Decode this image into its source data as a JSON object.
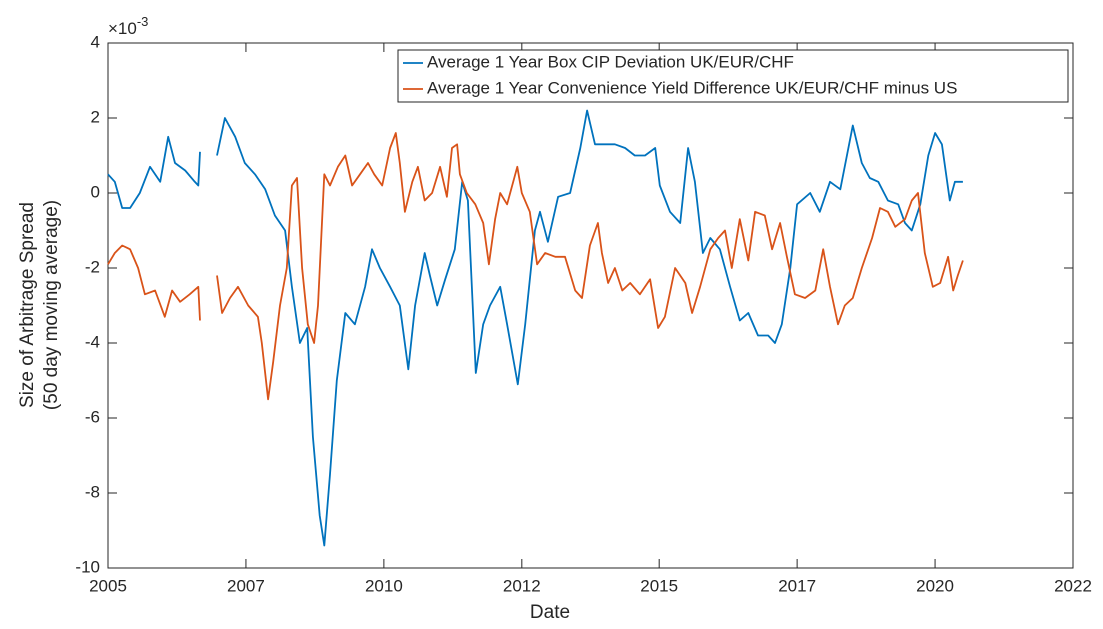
{
  "chart_data": {
    "type": "line",
    "xlabel": "Date",
    "ylabel": [
      "Size of Arbitrage Spread",
      "(50 day moving average)"
    ],
    "y_exponent": {
      "base": "×10",
      "power": "-3"
    },
    "xlim": [
      2005,
      2022
    ],
    "xticks": [
      2005,
      {
        "value": 2007.43,
        "label": "2007"
      },
      {
        "value": 2009.86,
        "label": "2010"
      },
      {
        "value": 2012.29,
        "label": "2012"
      },
      {
        "value": 2014.71,
        "label": "2015"
      },
      {
        "value": 2017.14,
        "label": "2017"
      },
      {
        "value": 2019.57,
        "label": "2020"
      },
      2022
    ],
    "ylim": [
      -10,
      4
    ],
    "yticks": [
      -10,
      -8,
      -6,
      -4,
      -2,
      0,
      2,
      4
    ],
    "grid": false,
    "legend": "top-right",
    "series": [
      {
        "name": "Average 1 Year Box CIP Deviation UK/EUR/CHF",
        "color": "#0072bd",
        "x": [
          2005.0,
          2005.12,
          2005.25,
          2005.39,
          2005.56,
          2005.74,
          2005.92,
          2006.06,
          2006.18,
          2006.36,
          2006.53,
          2006.59,
          2006.62,
          2006.77,
          2006.92,
          2007.06,
          2007.24,
          2007.41,
          2007.59,
          2007.77,
          2007.94,
          2008.12,
          2008.24,
          2008.38,
          2008.51,
          2008.61,
          2008.73,
          2008.81,
          2008.91,
          2009.03,
          2009.18,
          2009.35,
          2009.53,
          2009.65,
          2009.79,
          2009.97,
          2010.14,
          2010.29,
          2010.41,
          2010.58,
          2010.67,
          2010.8,
          2010.94,
          2011.11,
          2011.24,
          2011.34,
          2011.48,
          2011.61,
          2011.73,
          2011.91,
          2012.03,
          2012.22,
          2012.35,
          2012.52,
          2012.61,
          2012.75,
          2012.93,
          2013.14,
          2013.32,
          2013.44,
          2013.58,
          2013.76,
          2013.93,
          2014.11,
          2014.28,
          2014.46,
          2014.64,
          2014.72,
          2014.9,
          2015.08,
          2015.22,
          2015.34,
          2015.48,
          2015.61,
          2015.78,
          2015.96,
          2016.13,
          2016.28,
          2016.45,
          2016.63,
          2016.75,
          2016.87,
          2017.02,
          2017.14,
          2017.37,
          2017.54,
          2017.72,
          2017.9,
          2018.12,
          2018.28,
          2018.42,
          2018.57,
          2018.74,
          2018.92,
          2019.04,
          2019.16,
          2019.31,
          2019.45,
          2019.57,
          2019.69,
          2019.83,
          2019.92,
          2020.06
        ],
        "values": [
          0.5,
          0.3,
          -0.4,
          -0.4,
          0,
          0.7,
          0.3,
          1.5,
          0.8,
          0.6,
          0.3,
          0.2,
          1.1,
          null,
          1.0,
          2.0,
          1.5,
          0.8,
          0.5,
          0.1,
          -0.6,
          -1.0,
          -2.5,
          -4.0,
          -3.6,
          -6.5,
          -8.6,
          -9.4,
          -7.5,
          -5,
          -3.2,
          -3.5,
          -2.5,
          -1.5,
          -2,
          -2.5,
          -3,
          -4.7,
          -3,
          -1.6,
          -2.2,
          -3,
          -2.3,
          -1.5,
          0.3,
          -0.2,
          -4.8,
          -3.5,
          -3.0,
          -2.5,
          -3.5,
          -5.1,
          -3.5,
          -1,
          -0.5,
          -1.3,
          -0.1,
          0,
          1.2,
          2.2,
          1.3,
          1.3,
          1.3,
          1.2,
          1.0,
          1.0,
          1.2,
          0.2,
          -0.5,
          -0.8,
          1.2,
          0.3,
          -1.6,
          -1.2,
          -1.5,
          -2.5,
          -3.4,
          -3.2,
          -3.8,
          -3.8,
          -4.0,
          -3.5,
          -2,
          -0.3,
          0,
          -0.5,
          0.3,
          0.1,
          1.8,
          0.8,
          0.4,
          0.3,
          -0.2,
          -0.3,
          -0.8,
          -1.0,
          -0.3,
          1.0,
          1.6,
          1.3,
          -0.2,
          0.3,
          0.3
        ]
      },
      {
        "name": "Average 1 Year Convenience Yield Difference UK/EUR/CHF minus US",
        "color": "#d95319",
        "x": [
          2005.0,
          2005.12,
          2005.25,
          2005.39,
          2005.53,
          2005.65,
          2005.83,
          2006.0,
          2006.13,
          2006.27,
          2006.44,
          2006.59,
          2006.62,
          2006.77,
          2006.92,
          2007.01,
          2007.15,
          2007.29,
          2007.47,
          2007.64,
          2007.71,
          2007.82,
          2007.91,
          2008.03,
          2008.15,
          2008.24,
          2008.33,
          2008.42,
          2008.52,
          2008.63,
          2008.7,
          2008.81,
          2008.91,
          2009.05,
          2009.18,
          2009.3,
          2009.44,
          2009.58,
          2009.69,
          2009.83,
          2009.97,
          2010.07,
          2010.14,
          2010.23,
          2010.36,
          2010.46,
          2010.58,
          2010.71,
          2010.85,
          2010.97,
          2011.06,
          2011.15,
          2011.2,
          2011.32,
          2011.47,
          2011.61,
          2011.71,
          2011.82,
          2011.91,
          2012.03,
          2012.21,
          2012.29,
          2012.43,
          2012.56,
          2012.7,
          2012.88,
          2013.05,
          2013.23,
          2013.35,
          2013.49,
          2013.63,
          2013.7,
          2013.81,
          2013.93,
          2014.06,
          2014.2,
          2014.37,
          2014.55,
          2014.69,
          2014.81,
          2014.99,
          2015.17,
          2015.29,
          2015.43,
          2015.61,
          2015.75,
          2015.87,
          2015.99,
          2016.13,
          2016.28,
          2016.4,
          2016.57,
          2016.7,
          2016.84,
          2016.96,
          2017.1,
          2017.28,
          2017.46,
          2017.6,
          2017.72,
          2017.86,
          2017.98,
          2018.12,
          2018.28,
          2018.46,
          2018.6,
          2018.74,
          2018.87,
          2019.04,
          2019.16,
          2019.27,
          2019.39,
          2019.53,
          2019.66,
          2019.8,
          2019.89,
          2019.97,
          2020.06
        ],
        "values": [
          -1.9,
          -1.6,
          -1.4,
          -1.5,
          -2.0,
          -2.7,
          -2.6,
          -3.3,
          -2.6,
          -2.9,
          -2.7,
          -2.5,
          -3.4,
          null,
          -2.2,
          -3.2,
          -2.8,
          -2.5,
          -3.0,
          -3.3,
          -4.0,
          -5.5,
          -4.5,
          -3.0,
          -2,
          0.2,
          0.4,
          -2,
          -3.5,
          -4.0,
          -3.0,
          0.5,
          0.2,
          0.7,
          1.0,
          0.2,
          0.5,
          0.8,
          0.5,
          0.2,
          1.2,
          1.6,
          0.8,
          -0.5,
          0.3,
          0.7,
          -0.2,
          0,
          0.7,
          -0.1,
          1.2,
          1.3,
          0.5,
          0,
          -0.3,
          -0.8,
          -1.9,
          -0.7,
          0,
          -0.3,
          0.7,
          0,
          -0.5,
          -1.9,
          -1.6,
          -1.7,
          -1.7,
          -2.6,
          -2.8,
          -1.4,
          -0.8,
          -1.6,
          -2.4,
          -2.0,
          -2.6,
          -2.4,
          -2.7,
          -2.3,
          -3.6,
          -3.3,
          -2.0,
          -2.4,
          -3.2,
          -2.5,
          -1.5,
          -1.2,
          -1.0,
          -2.0,
          -0.7,
          -1.8,
          -0.5,
          -0.6,
          -1.5,
          -0.8,
          -1.7,
          -2.7,
          -2.8,
          -2.6,
          -1.5,
          -2.5,
          -3.5,
          -3.0,
          -2.8,
          -2.0,
          -1.2,
          -0.4,
          -0.5,
          -0.9,
          -0.7,
          -0.2,
          0,
          -1.6,
          -2.5,
          -2.4,
          -1.7,
          -2.6,
          -2.2,
          -1.8
        ]
      }
    ]
  }
}
